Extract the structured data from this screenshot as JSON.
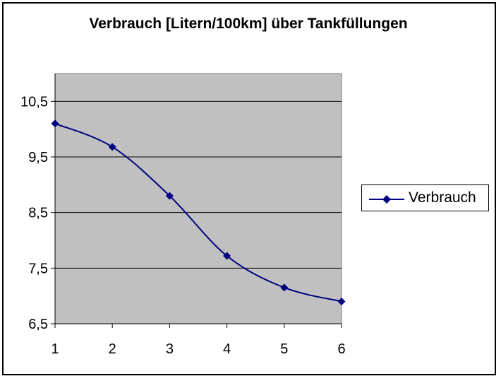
{
  "chart_data": {
    "type": "line",
    "title": "Verbrauch [Litern/100km] über Tankfüllungen",
    "xlabel": "",
    "ylabel": "",
    "x": [
      1,
      2,
      3,
      4,
      5,
      6
    ],
    "x_tick_labels": [
      "1",
      "2",
      "3",
      "4",
      "5",
      "6"
    ],
    "y_tick_labels": [
      "10,5",
      "9,5",
      "8,5",
      "7,5",
      "6,5"
    ],
    "y_ticks": [
      10.5,
      9.5,
      8.5,
      7.5,
      6.5
    ],
    "ylim": [
      6.5,
      11.0
    ],
    "grid": true,
    "legend_position": "right",
    "plot_background": "#c0c0c0",
    "series": [
      {
        "name": "Verbrauch",
        "color": "#000080",
        "marker": "diamond",
        "smooth": true,
        "values": [
          10.1,
          9.68,
          8.8,
          7.72,
          7.15,
          6.9
        ]
      }
    ]
  }
}
